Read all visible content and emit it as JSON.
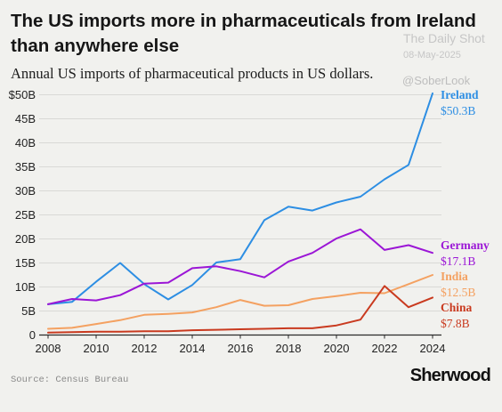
{
  "title": "The US imports more in pharmaceuticals from Ireland than anywhere else",
  "subtitle": "Annual US imports of pharmaceutical products in US dollars.",
  "watermark": {
    "name": "The Daily Shot",
    "date": "08-May-2025",
    "handle": "@SoberLook"
  },
  "source": "Source: Census Bureau",
  "brand": "Sherwood",
  "chart_data": {
    "type": "line",
    "x": [
      2008,
      2009,
      2010,
      2011,
      2012,
      2013,
      2014,
      2015,
      2016,
      2017,
      2018,
      2019,
      2020,
      2021,
      2022,
      2023,
      2024
    ],
    "x_ticks": [
      "2008",
      "2010",
      "2012",
      "2014",
      "2016",
      "2018",
      "2020",
      "2022",
      "2024"
    ],
    "y_ticks": [
      "0",
      "5B",
      "10B",
      "15B",
      "20B",
      "25B",
      "30B",
      "35B",
      "40B",
      "45B",
      "$50B"
    ],
    "y_tick_values": [
      0,
      5,
      10,
      15,
      20,
      25,
      30,
      35,
      40,
      45,
      50
    ],
    "ylim": [
      0,
      50
    ],
    "xlim": [
      2008,
      2024
    ],
    "grid": "horizontal",
    "legend": "end-of-line labels",
    "series": [
      {
        "name": "Ireland",
        "end_label": "$50.3B",
        "color": "#2d8ee3",
        "values": [
          6.4,
          6.9,
          11.1,
          15.0,
          10.6,
          7.4,
          10.4,
          15.1,
          15.8,
          23.9,
          26.7,
          25.9,
          27.6,
          28.8,
          32.4,
          35.4,
          50.3
        ]
      },
      {
        "name": "Germany",
        "end_label": "$17.1B",
        "color": "#9b16d6",
        "values": [
          6.4,
          7.5,
          7.2,
          8.3,
          10.7,
          10.9,
          13.9,
          14.3,
          13.3,
          12.0,
          15.3,
          17.1,
          20.1,
          22.0,
          17.7,
          18.7,
          17.1
        ]
      },
      {
        "name": "India",
        "end_label": "$12.5B",
        "color": "#f4a161",
        "values": [
          1.3,
          1.5,
          2.3,
          3.1,
          4.2,
          4.4,
          4.7,
          5.8,
          7.3,
          6.1,
          6.2,
          7.5,
          8.1,
          8.8,
          8.7,
          10.6,
          12.5
        ]
      },
      {
        "name": "China",
        "end_label": "$7.8B",
        "color": "#c93a1f",
        "values": [
          0.5,
          0.6,
          0.7,
          0.7,
          0.8,
          0.8,
          1.0,
          1.1,
          1.2,
          1.3,
          1.4,
          1.4,
          2.0,
          3.2,
          10.2,
          5.8,
          7.8
        ]
      }
    ]
  }
}
